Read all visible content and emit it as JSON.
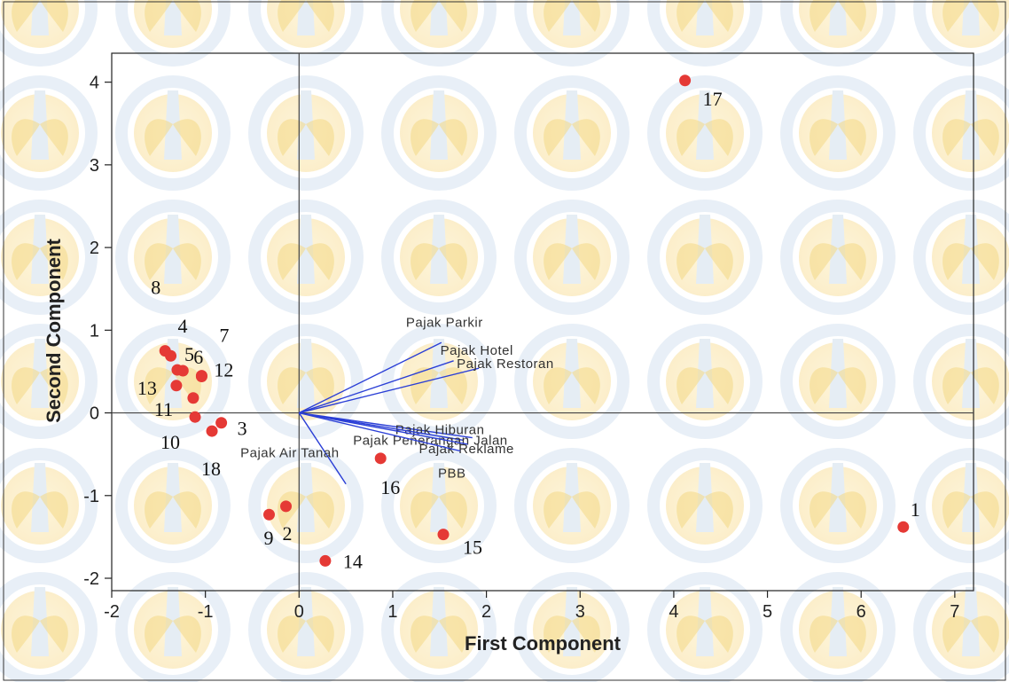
{
  "chart_data": {
    "type": "scatter",
    "subtype": "biplot",
    "title": "",
    "xlabel": "First Component",
    "ylabel": "Second Component",
    "xlim": [
      -2.0,
      7.2
    ],
    "ylim": [
      -2.15,
      4.35
    ],
    "xticks": [
      -2,
      -1,
      0,
      1,
      2,
      3,
      4,
      5,
      6,
      7
    ],
    "yticks": [
      -2,
      -1,
      0,
      1,
      2,
      3,
      4
    ],
    "tick_labels_x": [
      "-2",
      "-1",
      "0",
      "1",
      "2",
      "3",
      "4",
      "5",
      "6",
      "7"
    ],
    "tick_labels_y": [
      "-2",
      "-1",
      "0",
      "1",
      "2",
      "3",
      "4"
    ],
    "grid": false,
    "reference_lines": {
      "x": 0,
      "y": 0
    },
    "point_color": "#e53935",
    "vector_color": "#2b3fd6",
    "points": [
      {
        "label": "1",
        "x": 6.45,
        "y": -1.38
      },
      {
        "label": "2",
        "x": -0.14,
        "y": -1.13
      },
      {
        "label": "3",
        "x": -0.83,
        "y": -0.12
      },
      {
        "label": "4",
        "x": -1.37,
        "y": 0.69
      },
      {
        "label": "5",
        "x": -1.3,
        "y": 0.52
      },
      {
        "label": "6",
        "x": -1.24,
        "y": 0.51
      },
      {
        "label": "7",
        "x": -1.04,
        "y": 0.45
      },
      {
        "label": "8",
        "x": -1.43,
        "y": 0.75
      },
      {
        "label": "9",
        "x": -0.32,
        "y": -1.23
      },
      {
        "label": "10",
        "x": -1.11,
        "y": -0.05
      },
      {
        "label": "11",
        "x": -1.13,
        "y": 0.18
      },
      {
        "label": "12",
        "x": -1.04,
        "y": 0.44
      },
      {
        "label": "13",
        "x": -1.31,
        "y": 0.33
      },
      {
        "label": "14",
        "x": 0.28,
        "y": -1.79
      },
      {
        "label": "15",
        "x": 1.54,
        "y": -1.47
      },
      {
        "label": "16",
        "x": 0.87,
        "y": -0.55
      },
      {
        "label": "17",
        "x": 4.12,
        "y": 4.02
      },
      {
        "label": "18",
        "x": -0.93,
        "y": -0.22
      }
    ],
    "vectors": [
      {
        "name": "Pajak Parkir",
        "x": 1.52,
        "y": 0.85
      },
      {
        "name": "Pajak Hotel",
        "x": 1.65,
        "y": 0.63
      },
      {
        "name": "Pajak Restoran",
        "x": 1.92,
        "y": 0.54
      },
      {
        "name": "Pajak Hiburan",
        "x": 1.85,
        "y": -0.3
      },
      {
        "name": "Pajak Penerangan Jalan",
        "x": 1.75,
        "y": -0.33
      },
      {
        "name": "Pajak Reklame",
        "x": 1.8,
        "y": -0.38
      },
      {
        "name": "PBB",
        "x": 1.72,
        "y": -0.46
      },
      {
        "name": "Pajak Air Tanah",
        "x": 0.5,
        "y": -0.86
      }
    ]
  }
}
